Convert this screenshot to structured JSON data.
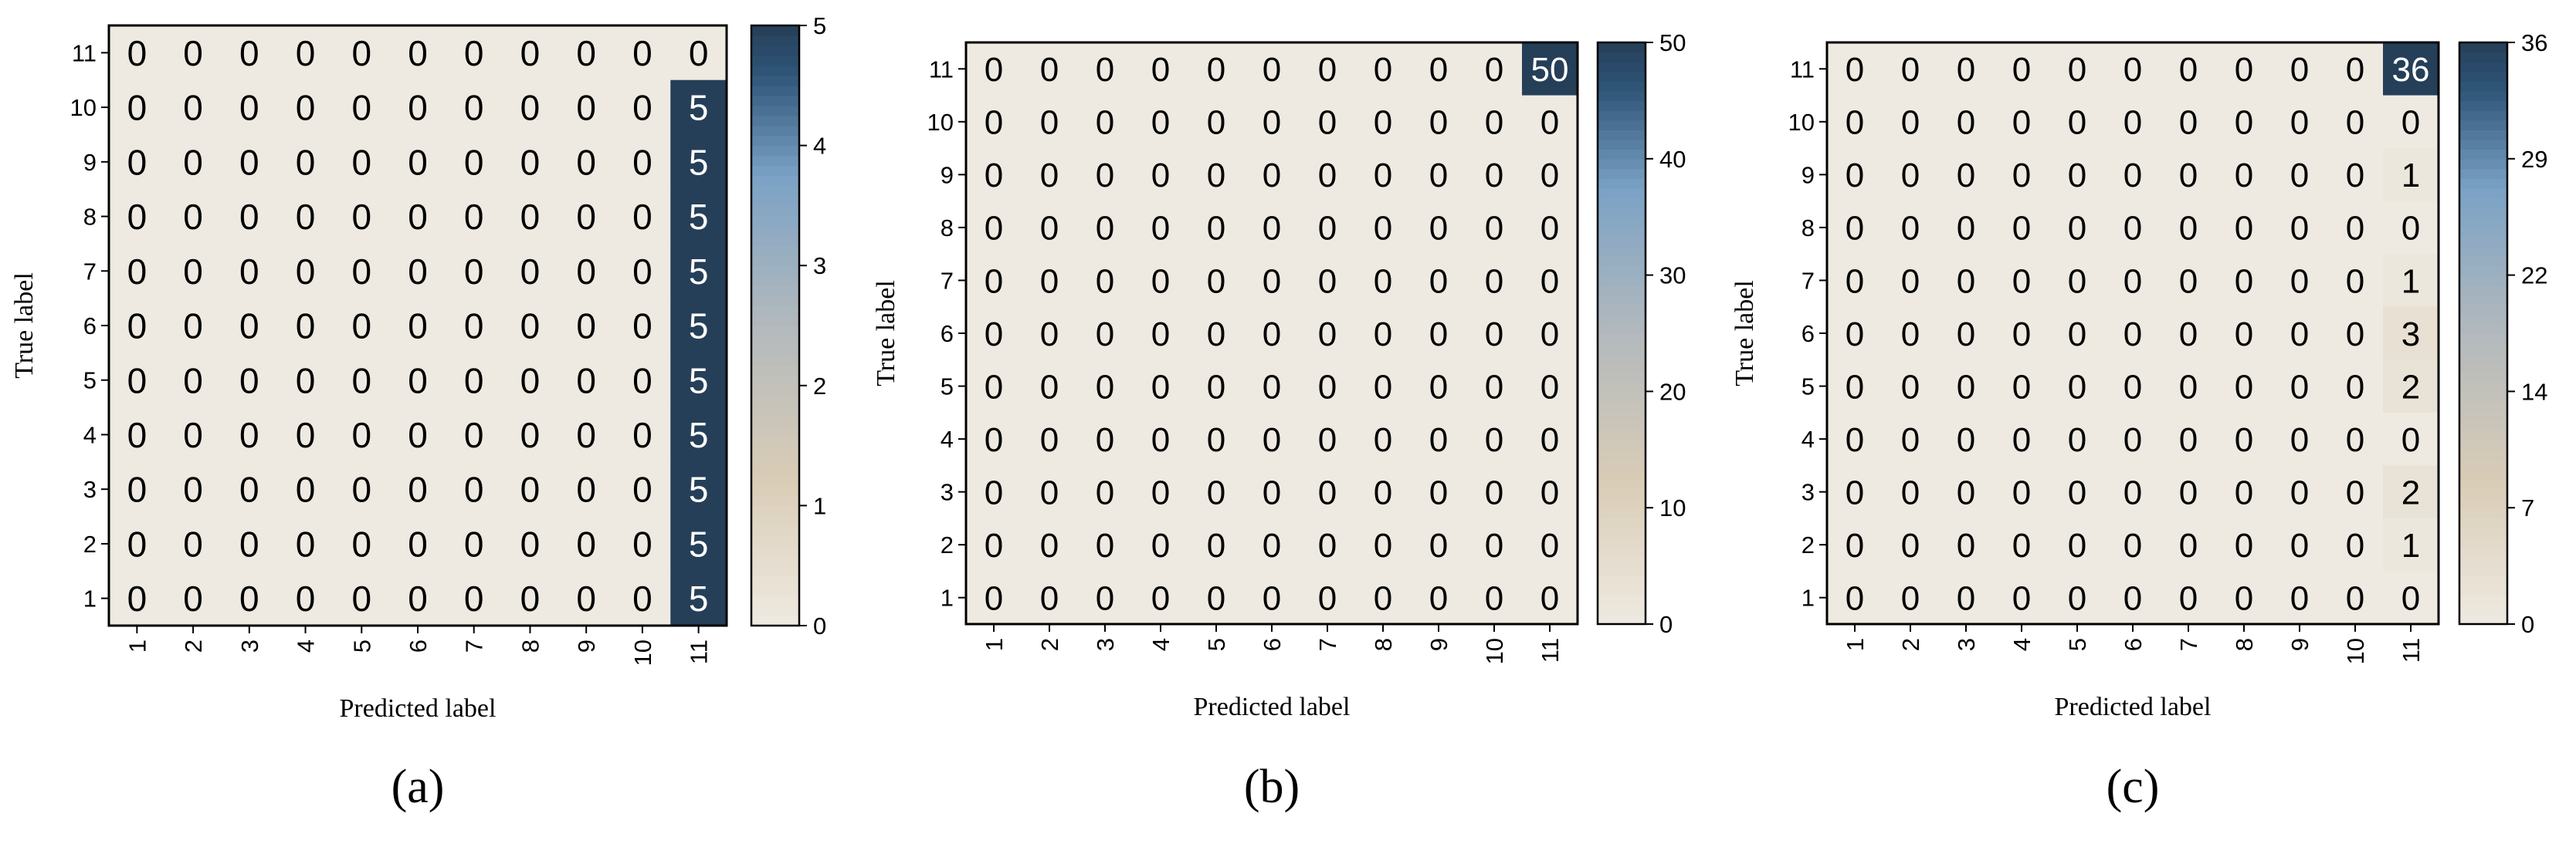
{
  "colors": {
    "low": "#eeeae1",
    "mid_low": "#d9ccb6",
    "mid": "#b3b9bd",
    "mid_high": "#7aa2c5",
    "high": "#2f5578",
    "top": "#263f58",
    "dark_text": "#000000",
    "light_text": "#ffffff"
  },
  "chart_data": [
    {
      "type": "heatmap",
      "panel_label": "(a)",
      "xlabel": "Predicted label",
      "ylabel": "True label",
      "x_labels": [
        "1",
        "2",
        "3",
        "4",
        "5",
        "6",
        "7",
        "8",
        "9",
        "10",
        "11"
      ],
      "y_labels": [
        "11",
        "10",
        "9",
        "8",
        "7",
        "6",
        "5",
        "4",
        "3",
        "2",
        "1"
      ],
      "values": [
        [
          0,
          0,
          0,
          0,
          0,
          0,
          0,
          0,
          0,
          0,
          0
        ],
        [
          0,
          0,
          0,
          0,
          0,
          0,
          0,
          0,
          0,
          0,
          5
        ],
        [
          0,
          0,
          0,
          0,
          0,
          0,
          0,
          0,
          0,
          0,
          5
        ],
        [
          0,
          0,
          0,
          0,
          0,
          0,
          0,
          0,
          0,
          0,
          5
        ],
        [
          0,
          0,
          0,
          0,
          0,
          0,
          0,
          0,
          0,
          0,
          5
        ],
        [
          0,
          0,
          0,
          0,
          0,
          0,
          0,
          0,
          0,
          0,
          5
        ],
        [
          0,
          0,
          0,
          0,
          0,
          0,
          0,
          0,
          0,
          0,
          5
        ],
        [
          0,
          0,
          0,
          0,
          0,
          0,
          0,
          0,
          0,
          0,
          5
        ],
        [
          0,
          0,
          0,
          0,
          0,
          0,
          0,
          0,
          0,
          0,
          5
        ],
        [
          0,
          0,
          0,
          0,
          0,
          0,
          0,
          0,
          0,
          0,
          5
        ],
        [
          0,
          0,
          0,
          0,
          0,
          0,
          0,
          0,
          0,
          0,
          5
        ]
      ],
      "colorbar_range": [
        0,
        5
      ],
      "colorbar_ticks": [
        "0",
        "1",
        "2",
        "3",
        "4",
        "5"
      ]
    },
    {
      "type": "heatmap",
      "panel_label": "(b)",
      "xlabel": "Predicted label",
      "ylabel": "True label",
      "x_labels": [
        "1",
        "2",
        "3",
        "4",
        "5",
        "6",
        "7",
        "8",
        "9",
        "10",
        "11"
      ],
      "y_labels": [
        "11",
        "10",
        "9",
        "8",
        "7",
        "6",
        "5",
        "4",
        "3",
        "2",
        "1"
      ],
      "values": [
        [
          0,
          0,
          0,
          0,
          0,
          0,
          0,
          0,
          0,
          0,
          50
        ],
        [
          0,
          0,
          0,
          0,
          0,
          0,
          0,
          0,
          0,
          0,
          0
        ],
        [
          0,
          0,
          0,
          0,
          0,
          0,
          0,
          0,
          0,
          0,
          0
        ],
        [
          0,
          0,
          0,
          0,
          0,
          0,
          0,
          0,
          0,
          0,
          0
        ],
        [
          0,
          0,
          0,
          0,
          0,
          0,
          0,
          0,
          0,
          0,
          0
        ],
        [
          0,
          0,
          0,
          0,
          0,
          0,
          0,
          0,
          0,
          0,
          0
        ],
        [
          0,
          0,
          0,
          0,
          0,
          0,
          0,
          0,
          0,
          0,
          0
        ],
        [
          0,
          0,
          0,
          0,
          0,
          0,
          0,
          0,
          0,
          0,
          0
        ],
        [
          0,
          0,
          0,
          0,
          0,
          0,
          0,
          0,
          0,
          0,
          0
        ],
        [
          0,
          0,
          0,
          0,
          0,
          0,
          0,
          0,
          0,
          0,
          0
        ],
        [
          0,
          0,
          0,
          0,
          0,
          0,
          0,
          0,
          0,
          0,
          0
        ]
      ],
      "colorbar_range": [
        0,
        50
      ],
      "colorbar_ticks": [
        "0",
        "10",
        "20",
        "30",
        "40",
        "50"
      ]
    },
    {
      "type": "heatmap",
      "panel_label": "(c)",
      "xlabel": "Predicted label",
      "ylabel": "True label",
      "x_labels": [
        "1",
        "2",
        "3",
        "4",
        "5",
        "6",
        "7",
        "8",
        "9",
        "10",
        "11"
      ],
      "y_labels": [
        "11",
        "10",
        "9",
        "8",
        "7",
        "6",
        "5",
        "4",
        "3",
        "2",
        "1"
      ],
      "values": [
        [
          0,
          0,
          0,
          0,
          0,
          0,
          0,
          0,
          0,
          0,
          36
        ],
        [
          0,
          0,
          0,
          0,
          0,
          0,
          0,
          0,
          0,
          0,
          0
        ],
        [
          0,
          0,
          0,
          0,
          0,
          0,
          0,
          0,
          0,
          0,
          1
        ],
        [
          0,
          0,
          0,
          0,
          0,
          0,
          0,
          0,
          0,
          0,
          0
        ],
        [
          0,
          0,
          0,
          0,
          0,
          0,
          0,
          0,
          0,
          0,
          1
        ],
        [
          0,
          0,
          0,
          0,
          0,
          0,
          0,
          0,
          0,
          0,
          3
        ],
        [
          0,
          0,
          0,
          0,
          0,
          0,
          0,
          0,
          0,
          0,
          2
        ],
        [
          0,
          0,
          0,
          0,
          0,
          0,
          0,
          0,
          0,
          0,
          0
        ],
        [
          0,
          0,
          0,
          0,
          0,
          0,
          0,
          0,
          0,
          0,
          2
        ],
        [
          0,
          0,
          0,
          0,
          0,
          0,
          0,
          0,
          0,
          0,
          1
        ],
        [
          0,
          0,
          0,
          0,
          0,
          0,
          0,
          0,
          0,
          0,
          0
        ]
      ],
      "colorbar_range": [
        0,
        36
      ],
      "colorbar_ticks": [
        "0",
        "7",
        "14",
        "22",
        "29",
        "36"
      ]
    }
  ]
}
